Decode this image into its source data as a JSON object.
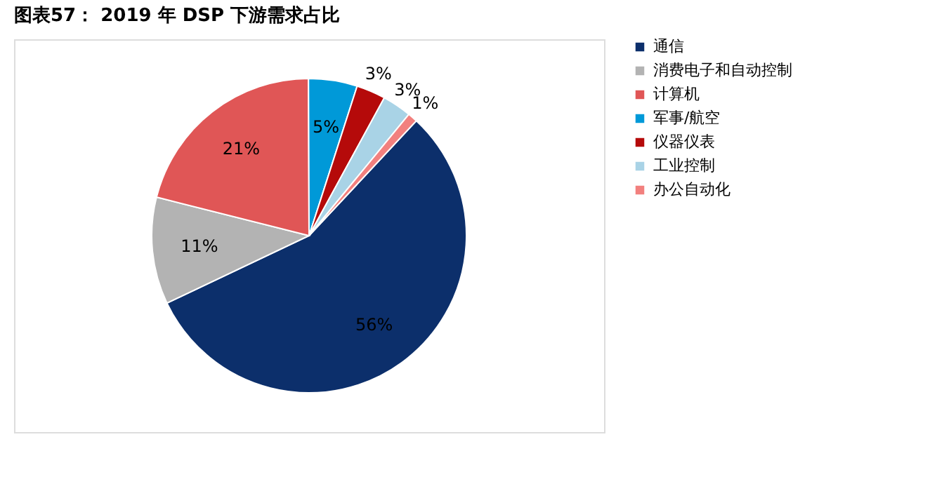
{
  "chart_data": {
    "type": "pie",
    "title": "图表57：  2019 年 DSP 下游需求占比",
    "categories": [
      "通信",
      "消费电子和自动控制",
      "计算机",
      "军事/航空",
      "仪器仪表",
      "工业控制",
      "办公自动化"
    ],
    "values": [
      56,
      11,
      21,
      5,
      3,
      3,
      1
    ],
    "colors": [
      "#0c2f6b",
      "#b3b3b3",
      "#e05656",
      "#0099d8",
      "#b50a0a",
      "#a9d3e6",
      "#f2807e"
    ],
    "value_labels": [
      "56%",
      "11%",
      "21%",
      "5%",
      "3%",
      "3%",
      "1%"
    ],
    "legend": "right"
  }
}
